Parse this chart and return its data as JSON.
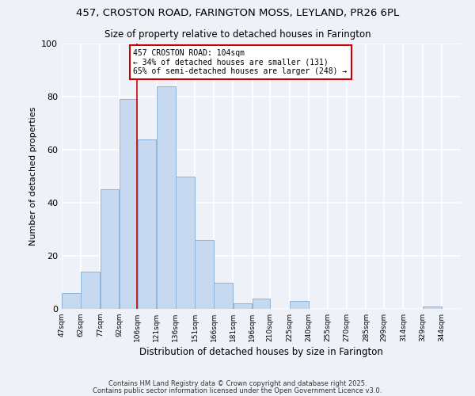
{
  "title1": "457, CROSTON ROAD, FARINGTON MOSS, LEYLAND, PR26 6PL",
  "title2": "Size of property relative to detached houses in Farington",
  "xlabel": "Distribution of detached houses by size in Farington",
  "ylabel": "Number of detached properties",
  "bar_left_edges": [
    47,
    62,
    77,
    92,
    106,
    121,
    136,
    151,
    166,
    181,
    196,
    210,
    225,
    240,
    255,
    270,
    285,
    299,
    314,
    329
  ],
  "bar_widths": [
    15,
    15,
    15,
    14,
    15,
    15,
    15,
    15,
    15,
    15,
    14,
    15,
    15,
    15,
    15,
    15,
    14,
    15,
    15,
    15
  ],
  "bar_heights": [
    6,
    14,
    45,
    79,
    64,
    84,
    50,
    26,
    10,
    2,
    4,
    0,
    3,
    0,
    0,
    0,
    0,
    0,
    0,
    1
  ],
  "tick_labels": [
    "47sqm",
    "62sqm",
    "77sqm",
    "92sqm",
    "106sqm",
    "121sqm",
    "136sqm",
    "151sqm",
    "166sqm",
    "181sqm",
    "196sqm",
    "210sqm",
    "225sqm",
    "240sqm",
    "255sqm",
    "270sqm",
    "285sqm",
    "299sqm",
    "314sqm",
    "329sqm",
    "344sqm"
  ],
  "tick_positions": [
    47,
    62,
    77,
    92,
    106,
    121,
    136,
    151,
    166,
    181,
    196,
    210,
    225,
    240,
    255,
    270,
    285,
    299,
    314,
    329,
    344
  ],
  "bar_color": "#c6d9f0",
  "bar_edge_color": "#8db4d9",
  "vline_x": 106,
  "vline_color": "#cc0000",
  "annotation_text": "457 CROSTON ROAD: 104sqm\n← 34% of detached houses are smaller (131)\n65% of semi-detached houses are larger (248) →",
  "annotation_box_color": "#ffffff",
  "annotation_box_edge": "#cc0000",
  "ylim": [
    0,
    100
  ],
  "xlim": [
    47,
    359
  ],
  "background_color": "#eef2f8",
  "footer1": "Contains HM Land Registry data © Crown copyright and database right 2025.",
  "footer2": "Contains public sector information licensed under the Open Government Licence v3.0.",
  "yticks": [
    0,
    20,
    40,
    60,
    80,
    100
  ]
}
